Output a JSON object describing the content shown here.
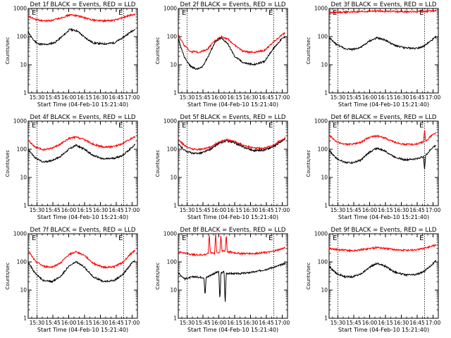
{
  "chart_data": [
    {
      "type": "line",
      "title": "Det 1f BLACK = Events, RED = LLD",
      "xlabel": "Start Time (04-Feb-10 15:21:40)",
      "ylabel": "Counts/sec",
      "x_ticks": [
        "15:30",
        "15:45",
        "16:00",
        "16:15",
        "16:30",
        "16:45",
        "17:00"
      ],
      "y_ticks": [
        "1",
        "10",
        "100",
        "1000"
      ],
      "y_scale": "log",
      "ylim": [
        1,
        1000
      ],
      "xlim": [
        "15:21:40",
        "17:05"
      ],
      "markers": [
        {
          "label": "E",
          "time": "15:30"
        },
        {
          "label": "E",
          "time": "16:52"
        }
      ],
      "series": [
        {
          "color": "#000000",
          "x": [
            "15:21:40",
            "15:26",
            "15:31",
            "15:39",
            "15:47",
            "15:55",
            "16:01",
            "16:08",
            "16:15",
            "16:23",
            "16:33",
            "16:43",
            "16:51",
            "16:59",
            "17:03"
          ],
          "y": [
            150,
            80,
            55,
            52,
            62,
            110,
            180,
            160,
            95,
            60,
            55,
            60,
            90,
            150,
            190
          ]
        },
        {
          "color": "#ff0000",
          "x": [
            "15:21:40",
            "15:29",
            "15:37",
            "15:45",
            "15:53",
            "16:01",
            "16:08",
            "16:15",
            "16:23",
            "16:33",
            "16:43",
            "16:51",
            "16:59",
            "17:03"
          ],
          "y": [
            520,
            400,
            360,
            380,
            470,
            590,
            560,
            460,
            390,
            360,
            380,
            470,
            580,
            610
          ]
        }
      ]
    },
    {
      "type": "line",
      "title": "Det 2f BLACK = Events, RED = LLD",
      "xlabel": "Start Time (04-Feb-10 15:21:40)",
      "ylabel": "Counts/sec",
      "x_ticks": [
        "15:30",
        "15:45",
        "16:00",
        "16:15",
        "16:30",
        "16:45",
        "17:00"
      ],
      "y_ticks": [
        "1",
        "10",
        "100",
        "1000"
      ],
      "y_scale": "log",
      "ylim": [
        1,
        1000
      ],
      "xlim": [
        "15:21:40",
        "17:05"
      ],
      "markers": [
        {
          "label": "E",
          "time": "15:30"
        },
        {
          "label": "E",
          "time": "16:52"
        }
      ],
      "series": [
        {
          "color": "#000000",
          "x": [
            "15:21:40",
            "15:27",
            "15:33",
            "15:39",
            "15:44",
            "15:50",
            "15:56",
            "16:02",
            "16:08",
            "16:15",
            "16:23",
            "16:33",
            "16:43",
            "16:51",
            "16:59",
            "17:03"
          ],
          "y": [
            80,
            20,
            9,
            7,
            8,
            20,
            60,
            90,
            60,
            20,
            12,
            10,
            13,
            35,
            80,
            100
          ]
        },
        {
          "color": "#ff0000",
          "x": [
            "15:21:40",
            "15:27",
            "15:33",
            "15:41",
            "15:49",
            "15:56",
            "16:02",
            "16:08",
            "16:15",
            "16:23",
            "16:33",
            "16:43",
            "16:51",
            "16:59",
            "17:03"
          ],
          "y": [
            120,
            50,
            30,
            28,
            35,
            70,
            100,
            85,
            50,
            30,
            28,
            32,
            60,
            110,
            140
          ]
        }
      ]
    },
    {
      "type": "line",
      "title": "Det 3f BLACK = Events, RED = LLD",
      "xlabel": "Start Time (04-Feb-10 15:21:40)",
      "ylabel": "Counts/sec",
      "x_ticks": [
        "15:30",
        "15:45",
        "16:00",
        "16:15",
        "16:30",
        "16:45",
        "17:00"
      ],
      "y_ticks": [
        "1",
        "10",
        "100",
        "1000"
      ],
      "y_scale": "log",
      "ylim": [
        1,
        1000
      ],
      "xlim": [
        "15:21:40",
        "17:05"
      ],
      "markers": [
        {
          "label": "E",
          "time": "15:30"
        },
        {
          "label": "E",
          "time": "16:52"
        }
      ],
      "series": [
        {
          "color": "#000000",
          "x": [
            "15:21:40",
            "15:28",
            "15:36",
            "15:44",
            "15:52",
            "16:00",
            "16:07",
            "16:15",
            "16:23",
            "16:33",
            "16:43",
            "16:51",
            "16:59",
            "17:03"
          ],
          "y": [
            90,
            55,
            38,
            35,
            42,
            70,
            90,
            75,
            50,
            40,
            38,
            45,
            75,
            100
          ]
        },
        {
          "color": "#ff0000",
          "x": [
            "15:21:40",
            "15:35",
            "15:50",
            "16:05",
            "16:20",
            "16:35",
            "16:50",
            "17:03"
          ],
          "y": [
            700,
            740,
            760,
            810,
            790,
            760,
            780,
            830
          ]
        }
      ]
    },
    {
      "type": "line",
      "title": "Det 4f BLACK = Events, RED = LLD",
      "xlabel": "Start Time (04-Feb-10 15:21:40)",
      "ylabel": "Counts/sec",
      "x_ticks": [
        "15:30",
        "15:45",
        "16:00",
        "16:15",
        "16:30",
        "16:45",
        "17:00"
      ],
      "y_ticks": [
        "1",
        "10",
        "100",
        "1000"
      ],
      "y_scale": "log",
      "ylim": [
        1,
        1000
      ],
      "xlim": [
        "15:21:40",
        "17:05"
      ],
      "markers": [
        {
          "label": "E",
          "time": "15:30"
        },
        {
          "label": "E",
          "time": "16:52"
        }
      ],
      "series": [
        {
          "color": "#000000",
          "x": [
            "15:21:40",
            "15:28",
            "15:36",
            "15:44",
            "15:52",
            "16:00",
            "16:07",
            "16:15",
            "16:23",
            "16:33",
            "16:43",
            "16:51",
            "16:59",
            "17:03"
          ],
          "y": [
            100,
            50,
            35,
            40,
            55,
            100,
            140,
            100,
            60,
            45,
            48,
            60,
            110,
            150
          ]
        },
        {
          "color": "#ff0000",
          "x": [
            "15:21:40",
            "15:28",
            "15:36",
            "15:44",
            "15:52",
            "16:00",
            "16:07",
            "16:15",
            "16:23",
            "16:33",
            "16:43",
            "16:51",
            "16:59",
            "17:03"
          ],
          "y": [
            210,
            120,
            95,
            110,
            150,
            240,
            270,
            220,
            150,
            120,
            125,
            160,
            240,
            280
          ]
        }
      ]
    },
    {
      "type": "line",
      "title": "Det 5f BLACK = Events, RED = LLD",
      "xlabel": "Start Time (04-Feb-10 15:21:40)",
      "ylabel": "Counts/sec",
      "x_ticks": [
        "15:30",
        "15:45",
        "16:00",
        "16:15",
        "16:30",
        "16:45",
        "17:00"
      ],
      "y_ticks": [
        "1",
        "10",
        "100",
        "1000"
      ],
      "y_scale": "log",
      "ylim": [
        1,
        1000
      ],
      "xlim": [
        "15:21:40",
        "17:05"
      ],
      "markers": [
        {
          "label": "E",
          "time": "15:30"
        },
        {
          "label": "E",
          "time": "16:52"
        }
      ],
      "series": [
        {
          "color": "#000000",
          "x": [
            "15:21:40",
            "15:28",
            "15:36",
            "15:44",
            "15:52",
            "16:00",
            "16:07",
            "16:15",
            "16:23",
            "16:33",
            "16:43",
            "16:51",
            "16:59",
            "17:03"
          ],
          "y": [
            150,
            90,
            70,
            75,
            100,
            160,
            200,
            170,
            120,
            90,
            95,
            120,
            190,
            230
          ]
        },
        {
          "color": "#ff0000",
          "x": [
            "15:21:40",
            "15:28",
            "15:36",
            "15:44",
            "15:52",
            "16:00",
            "16:07",
            "16:15",
            "16:23",
            "16:33",
            "16:43",
            "16:51",
            "16:59",
            "17:03"
          ],
          "y": [
            230,
            130,
            100,
            100,
            120,
            180,
            220,
            190,
            140,
            110,
            110,
            135,
            210,
            250
          ]
        }
      ]
    },
    {
      "type": "line",
      "title": "Det 6f BLACK = Events, RED = LLD",
      "xlabel": "Start Time (04-Feb-10 15:21:40)",
      "ylabel": "Counts/sec",
      "x_ticks": [
        "15:30",
        "15:45",
        "16:00",
        "16:15",
        "16:30",
        "16:45",
        "17:00"
      ],
      "y_ticks": [
        "1",
        "10",
        "100",
        "1000"
      ],
      "y_scale": "log",
      "ylim": [
        1,
        1000
      ],
      "xlim": [
        "15:21:40",
        "17:05"
      ],
      "markers": [
        {
          "label": "E",
          "time": "15:30"
        },
        {
          "label": "E",
          "time": "16:52"
        }
      ],
      "series": [
        {
          "color": "#000000",
          "x": [
            "15:21:40",
            "15:28",
            "15:36",
            "15:44",
            "15:52",
            "16:00",
            "16:07",
            "16:15",
            "16:23",
            "16:33",
            "16:43",
            "16:51",
            "16:52",
            "16:53",
            "16:59",
            "17:03"
          ],
          "y": [
            90,
            50,
            35,
            33,
            42,
            80,
            110,
            85,
            55,
            42,
            45,
            55,
            20,
            60,
            110,
            140
          ]
        },
        {
          "color": "#ff0000",
          "x": [
            "15:21:40",
            "15:28",
            "15:36",
            "15:44",
            "15:52",
            "16:00",
            "16:07",
            "16:15",
            "16:23",
            "16:33",
            "16:43",
            "16:51",
            "16:52",
            "16:53",
            "16:59",
            "17:03"
          ],
          "y": [
            320,
            190,
            150,
            150,
            180,
            270,
            300,
            250,
            180,
            150,
            150,
            180,
            500,
            190,
            320,
            380
          ]
        }
      ]
    },
    {
      "type": "line",
      "title": "Det 7f BLACK = Events, RED = LLD",
      "xlabel": "Start Time (04-Feb-10 15:21:40)",
      "ylabel": "Counts/sec",
      "x_ticks": [
        "15:30",
        "15:45",
        "16:00",
        "16:15",
        "16:30",
        "16:45",
        "17:00"
      ],
      "y_ticks": [
        "1",
        "10",
        "100",
        "1000"
      ],
      "y_scale": "log",
      "ylim": [
        1,
        1000
      ],
      "xlim": [
        "15:21:40",
        "17:05"
      ],
      "markers": [
        {
          "label": "E",
          "time": "15:30"
        },
        {
          "label": "E",
          "time": "16:52"
        }
      ],
      "series": [
        {
          "color": "#000000",
          "x": [
            "15:21:40",
            "15:28",
            "15:36",
            "15:44",
            "15:52",
            "16:00",
            "16:07",
            "16:15",
            "16:23",
            "16:33",
            "16:43",
            "16:51",
            "16:59",
            "17:03"
          ],
          "y": [
            100,
            40,
            22,
            20,
            30,
            70,
            100,
            65,
            30,
            20,
            22,
            35,
            85,
            120
          ]
        },
        {
          "color": "#ff0000",
          "x": [
            "15:21:40",
            "15:28",
            "15:36",
            "15:44",
            "15:52",
            "16:00",
            "16:07",
            "16:15",
            "16:23",
            "16:33",
            "16:43",
            "16:51",
            "16:59",
            "17:03"
          ],
          "y": [
            250,
            110,
            70,
            65,
            90,
            180,
            230,
            170,
            90,
            65,
            68,
            95,
            200,
            260
          ]
        }
      ]
    },
    {
      "type": "line",
      "title": "Det 8f BLACK = Events, RED = LLD",
      "xlabel": "Start Time (04-Feb-10 15:21:40)",
      "ylabel": "Counts/sec",
      "x_ticks": [
        "15:30",
        "15:45",
        "16:00",
        "16:15",
        "16:30",
        "16:45",
        "17:00"
      ],
      "y_ticks": [
        "1",
        "10",
        "100",
        "1000"
      ],
      "y_scale": "log",
      "ylim": [
        1,
        1000
      ],
      "xlim": [
        "15:21:40",
        "17:05"
      ],
      "markers": [
        {
          "label": "E",
          "time": "15:30"
        },
        {
          "label": "E",
          "time": "16:52"
        }
      ],
      "series": [
        {
          "color": "#000000",
          "x": [
            "15:21:40",
            "15:28",
            "15:36",
            "15:46",
            "15:47",
            "15:48",
            "15:56",
            "16:00",
            "16:01",
            "16:02",
            "16:05",
            "16:06",
            "16:07",
            "16:15",
            "16:25",
            "16:35",
            "16:45",
            "16:55",
            "17:03"
          ],
          "y": [
            40,
            25,
            30,
            28,
            6,
            28,
            40,
            45,
            4,
            40,
            45,
            3,
            40,
            38,
            40,
            45,
            55,
            70,
            90
          ]
        },
        {
          "color": "#ff0000",
          "x": [
            "15:21:40",
            "15:36",
            "15:46",
            "15:50",
            "15:51",
            "15:52",
            "15:56",
            "15:57",
            "15:58",
            "16:01",
            "16:02",
            "16:03",
            "16:06",
            "16:07",
            "16:08",
            "16:20",
            "16:35",
            "16:50",
            "17:03"
          ],
          "y": [
            230,
            180,
            180,
            200,
            1000,
            220,
            200,
            1000,
            210,
            220,
            1000,
            240,
            240,
            1000,
            230,
            200,
            200,
            230,
            320
          ]
        }
      ]
    },
    {
      "type": "line",
      "title": "Det 9f BLACK = Events, RED = LLD",
      "xlabel": "Start Time (04-Feb-10 15:21:40)",
      "ylabel": "Counts/sec",
      "x_ticks": [
        "15:30",
        "15:45",
        "16:00",
        "16:15",
        "16:30",
        "16:45",
        "17:00"
      ],
      "y_ticks": [
        "1",
        "10",
        "100",
        "1000"
      ],
      "y_scale": "log",
      "ylim": [
        1,
        1000
      ],
      "xlim": [
        "15:21:40",
        "17:05"
      ],
      "markers": [
        {
          "label": "E",
          "time": "15:30"
        },
        {
          "label": "E",
          "time": "16:52"
        }
      ],
      "series": [
        {
          "color": "#000000",
          "x": [
            "15:21:40",
            "15:28",
            "15:36",
            "15:44",
            "15:52",
            "16:00",
            "16:07",
            "16:15",
            "16:23",
            "16:33",
            "16:43",
            "16:51",
            "16:59",
            "17:03"
          ],
          "y": [
            70,
            40,
            30,
            30,
            38,
            65,
            90,
            70,
            45,
            35,
            35,
            45,
            80,
            110
          ]
        },
        {
          "color": "#ff0000",
          "x": [
            "15:21:40",
            "15:30",
            "15:45",
            "16:00",
            "16:07",
            "16:15",
            "16:30",
            "16:45",
            "16:55",
            "17:03"
          ],
          "y": [
            300,
            270,
            250,
            300,
            330,
            300,
            260,
            270,
            330,
            400
          ]
        }
      ]
    }
  ]
}
